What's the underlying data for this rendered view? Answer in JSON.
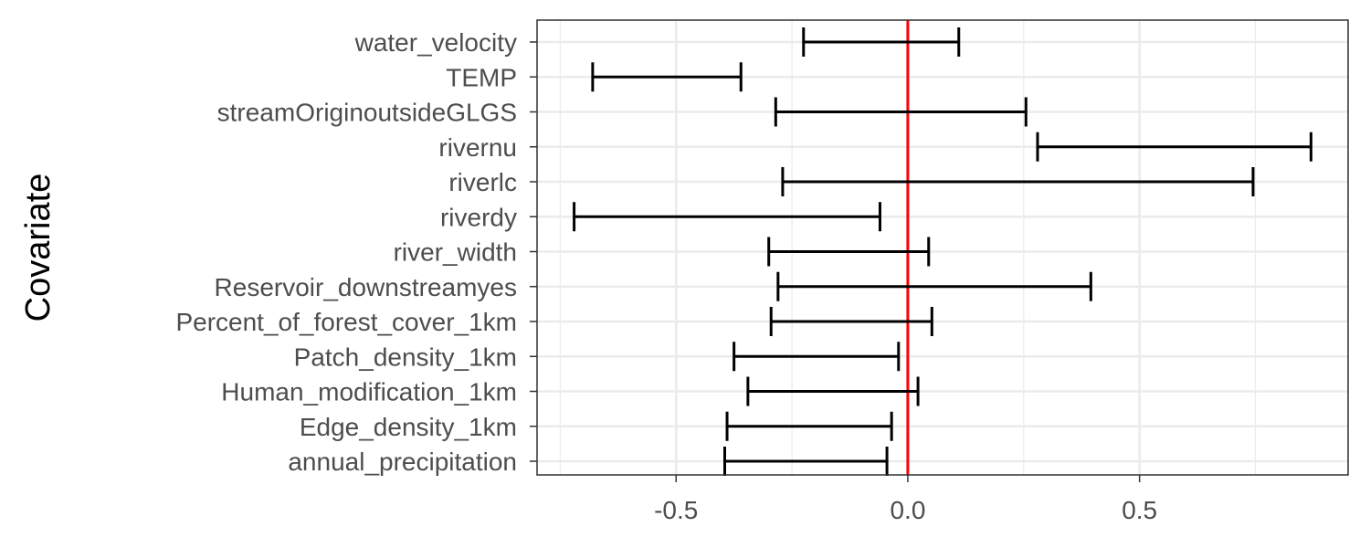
{
  "chart_data": {
    "type": "errorbar",
    "title": "",
    "xlabel": "",
    "ylabel": "Covariate",
    "xlim": [
      -0.8,
      0.95
    ],
    "xticks": [
      -0.5,
      0.0,
      0.5
    ],
    "xtick_labels": [
      "-0.5",
      "0.0",
      "0.5"
    ],
    "reference_line": {
      "x": 0,
      "color": "#ff0000"
    },
    "grid": true,
    "legend": "none",
    "categories": [
      "water_velocity",
      "TEMP",
      "streamOriginoutsideGLGS",
      "rivernu",
      "riverlc",
      "riverdy",
      "river_width",
      "Reservoir_downstreamyes",
      "Percent_of_forest_cover_1km",
      "Patch_density_1km",
      "Human_modification_1km",
      "Edge_density_1km",
      "annual_precipitation"
    ],
    "lower": [
      -0.225,
      -0.68,
      -0.285,
      0.28,
      -0.27,
      -0.72,
      -0.3,
      -0.28,
      -0.295,
      -0.375,
      -0.345,
      -0.39,
      -0.395
    ],
    "upper": [
      0.11,
      -0.36,
      0.255,
      0.87,
      0.745,
      -0.06,
      0.045,
      0.395,
      0.052,
      -0.02,
      0.022,
      -0.035,
      -0.045
    ],
    "colors": {
      "bar": "#000000",
      "panel_border": "#333333",
      "grid": "#ebebeb",
      "tick_text": "#4d4d4d"
    }
  }
}
